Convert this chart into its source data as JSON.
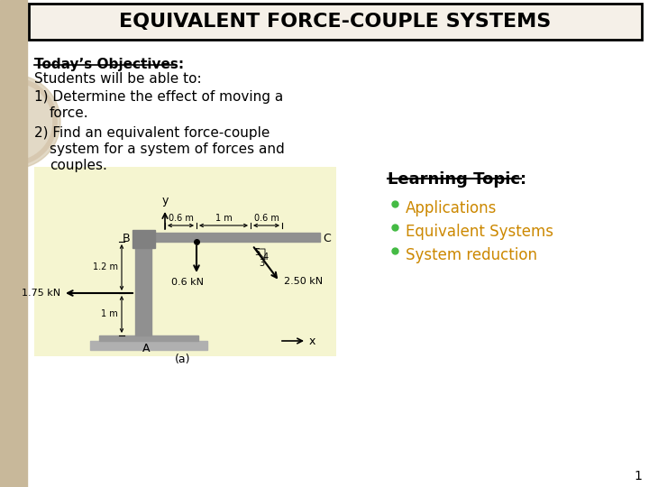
{
  "title": "EQUIVALENT FORCE-COUPLE SYSTEMS",
  "title_fontsize": 16,
  "title_bg_color": "#f5f0e8",
  "title_border_color": "#000000",
  "slide_bg_color": "#ffffff",
  "left_strip_color": "#c8b89a",
  "objectives_header": "Today’s Objectives",
  "objectives_subheader": "Students will be able to:",
  "learning_topic_header": "Learning Topic",
  "learning_items": [
    "Applications",
    "Equivalent Systems",
    "System reduction"
  ],
  "learning_items_color": "#cc8800",
  "bullet_color": "#44bb44",
  "diagram_bg_color": "#f5f5d0",
  "diagram_caption": "(a)",
  "page_number": "1"
}
